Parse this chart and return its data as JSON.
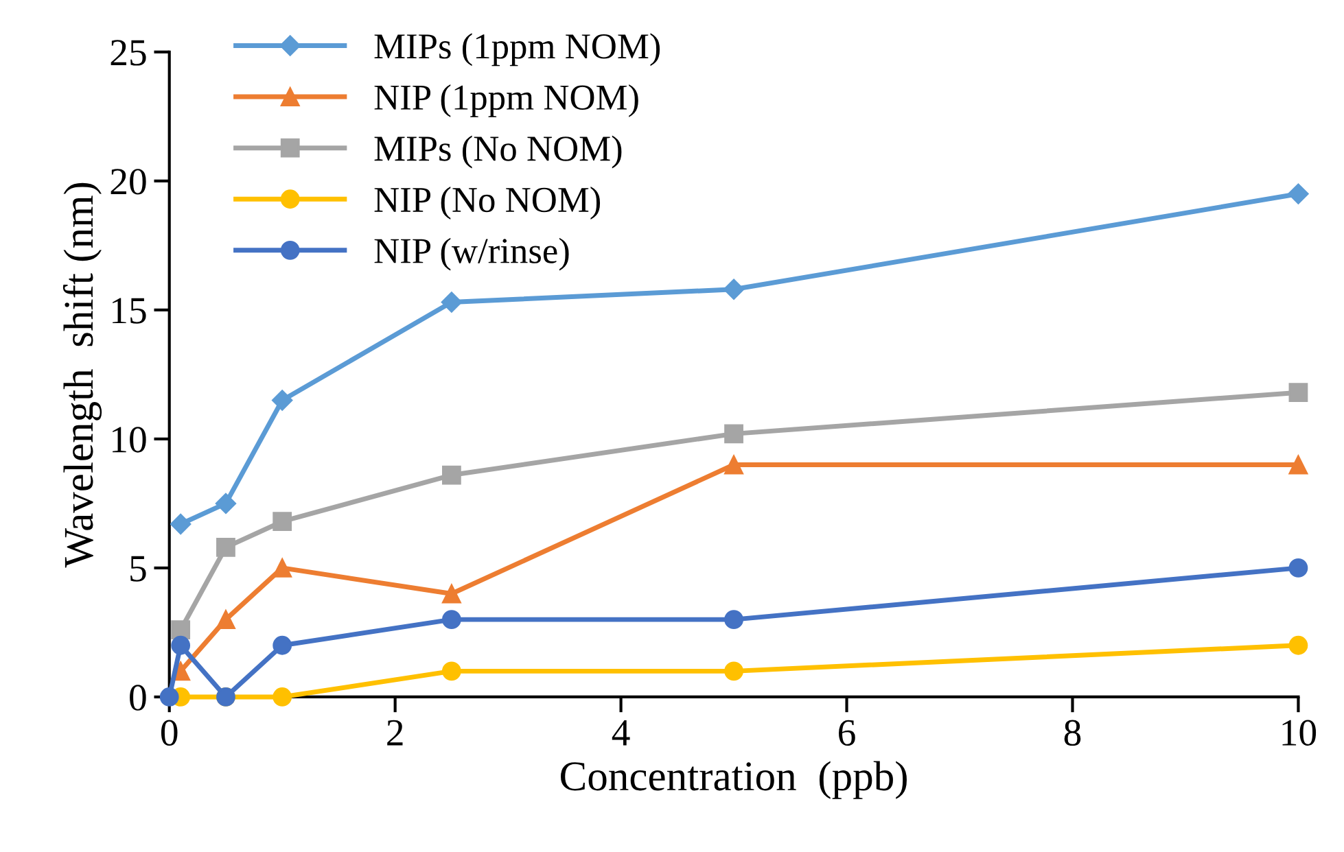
{
  "chart_data": {
    "type": "line",
    "xlabel": "Concentration  (ppb)",
    "ylabel": "Wavelength  shift (nm)",
    "xlim": [
      0,
      10
    ],
    "xticks": [
      0,
      2,
      4,
      6,
      8,
      10
    ],
    "ylim": [
      0,
      25
    ],
    "yticks": [
      0,
      5,
      10,
      15,
      20,
      25
    ],
    "grid": false,
    "legend": "top left",
    "line_style": "solid",
    "series": [
      {
        "name": "MIPs (1ppm NOM)",
        "color": "#5b9bd5",
        "marker": "diamond",
        "x": [
          0.1,
          0.5,
          1,
          2.5,
          5,
          10
        ],
        "values": [
          6.7,
          7.5,
          11.5,
          15.3,
          15.8,
          19.5
        ]
      },
      {
        "name": "NIP (1ppm NOM)",
        "color": "#ed7d31",
        "marker": "triangle",
        "x": [
          0.1,
          0.5,
          1,
          2.5,
          5,
          10
        ],
        "values": [
          1.0,
          3.0,
          5.0,
          4.0,
          9.0,
          9.0
        ]
      },
      {
        "name": "MIPs (No NOM)",
        "color": "#a5a5a5",
        "marker": "square",
        "x": [
          0.1,
          0.5,
          1,
          2.5,
          5,
          10
        ],
        "values": [
          2.6,
          5.8,
          6.8,
          8.6,
          10.2,
          11.8
        ]
      },
      {
        "name": "NIP (No NOM)",
        "color": "#ffc000",
        "marker": "circle",
        "x": [
          0.1,
          0.5,
          1,
          2.5,
          5,
          10
        ],
        "values": [
          0,
          0,
          0,
          1.0,
          1.0,
          2.0
        ]
      },
      {
        "name": "NIP (w/rinse)",
        "color": "#4472c4",
        "marker": "circle",
        "x": [
          0,
          0.1,
          0.5,
          1,
          2.5,
          5,
          10
        ],
        "values": [
          0,
          2.0,
          0,
          2.0,
          3.0,
          3.0,
          5.0
        ]
      }
    ]
  }
}
